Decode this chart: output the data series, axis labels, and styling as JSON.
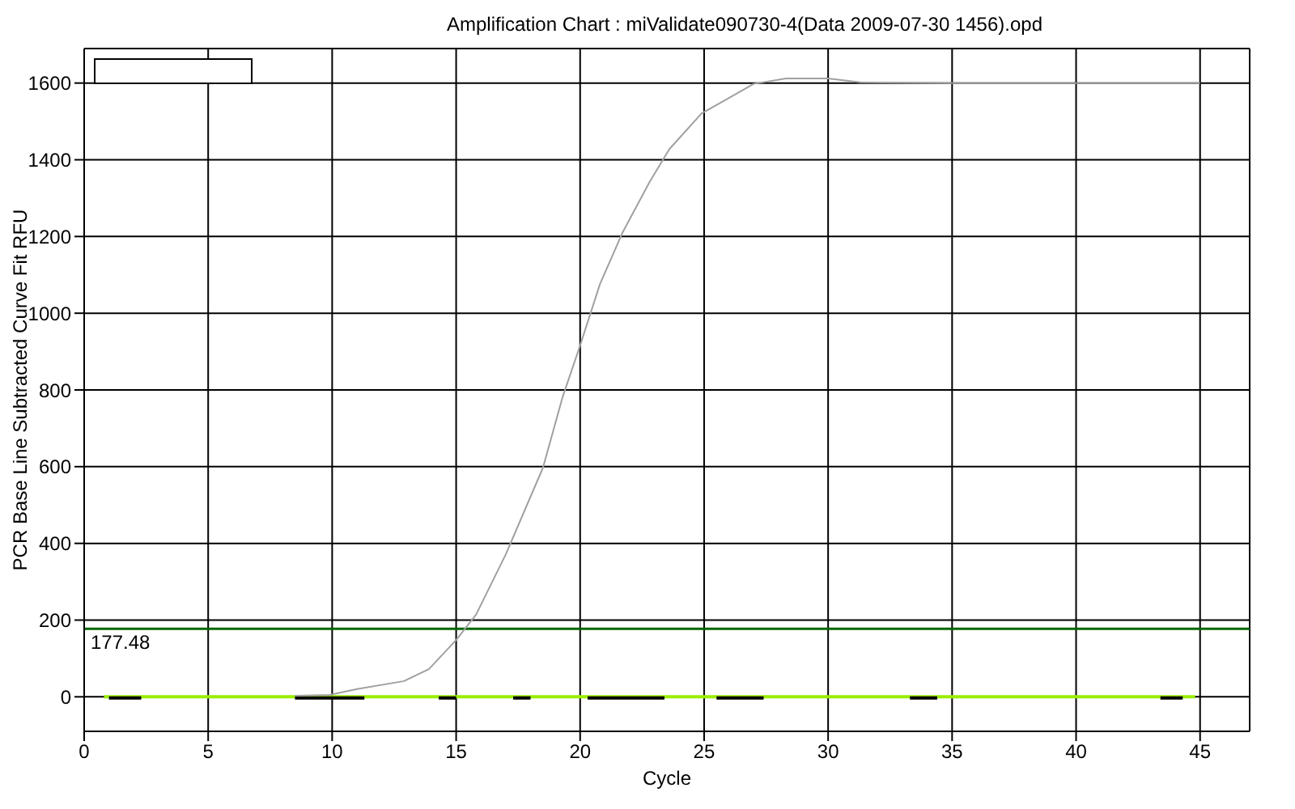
{
  "chart_data": {
    "type": "line",
    "title": "Amplification Chart : miValidate090730-4(Data 2009-07-30 1456).opd",
    "xlabel": "Cycle",
    "ylabel": "PCR Base Line Subtracted Curve Fit RFU",
    "xlim": [
      0,
      47
    ],
    "xticks": [
      0,
      5,
      10,
      15,
      20,
      25,
      30,
      35,
      40,
      45
    ],
    "ylim": [
      -90,
      1690
    ],
    "yticks": [
      0,
      200,
      400,
      600,
      800,
      1000,
      1200,
      1400,
      1600
    ],
    "grid": true,
    "marker": "none",
    "line_style": "solid",
    "ref_lines": [
      {
        "axis": "y",
        "value": 177.48,
        "label": "177.48",
        "color": "#006600"
      }
    ],
    "series": [
      {
        "color": "#99ee00",
        "x": [
          0.8,
          5,
          10,
          15,
          20,
          25,
          30,
          35,
          40,
          44.8
        ],
        "values": [
          0,
          0,
          0,
          0,
          0,
          0,
          0,
          0,
          0,
          0
        ]
      },
      {
        "color": "#000000",
        "x": [
          1,
          2.3,
          2.4,
          8.5,
          11.3,
          11.4,
          14.3,
          15,
          15.1,
          17.3,
          18,
          18.1,
          20.3,
          23.4,
          23.5,
          25.5,
          27.4,
          27.5,
          33.3,
          34.4,
          34.5,
          43.4,
          44.3
        ],
        "values": [
          -3,
          -3,
          null,
          -3,
          -3,
          null,
          -3,
          -3,
          null,
          -3,
          -3,
          null,
          -3,
          -3,
          null,
          -3,
          -3,
          null,
          -3,
          -3,
          null,
          -3,
          -3
        ]
      },
      {
        "color": "#a0a0a0",
        "x": [
          8.5,
          9.9,
          11,
          12.9,
          13.9,
          15,
          15.8,
          17,
          18.5,
          19.3,
          20,
          20.8,
          21.7,
          22.8,
          23.6,
          24.9,
          26,
          27,
          28.3,
          30,
          31.3,
          35,
          40,
          45
        ],
        "values": [
          3,
          5,
          20,
          41,
          72,
          148,
          214,
          371,
          597,
          783,
          916,
          1076,
          1209,
          1342,
          1428,
          1521,
          1561,
          1598,
          1612,
          1612,
          1602,
          1600,
          1600,
          1600
        ]
      }
    ]
  }
}
